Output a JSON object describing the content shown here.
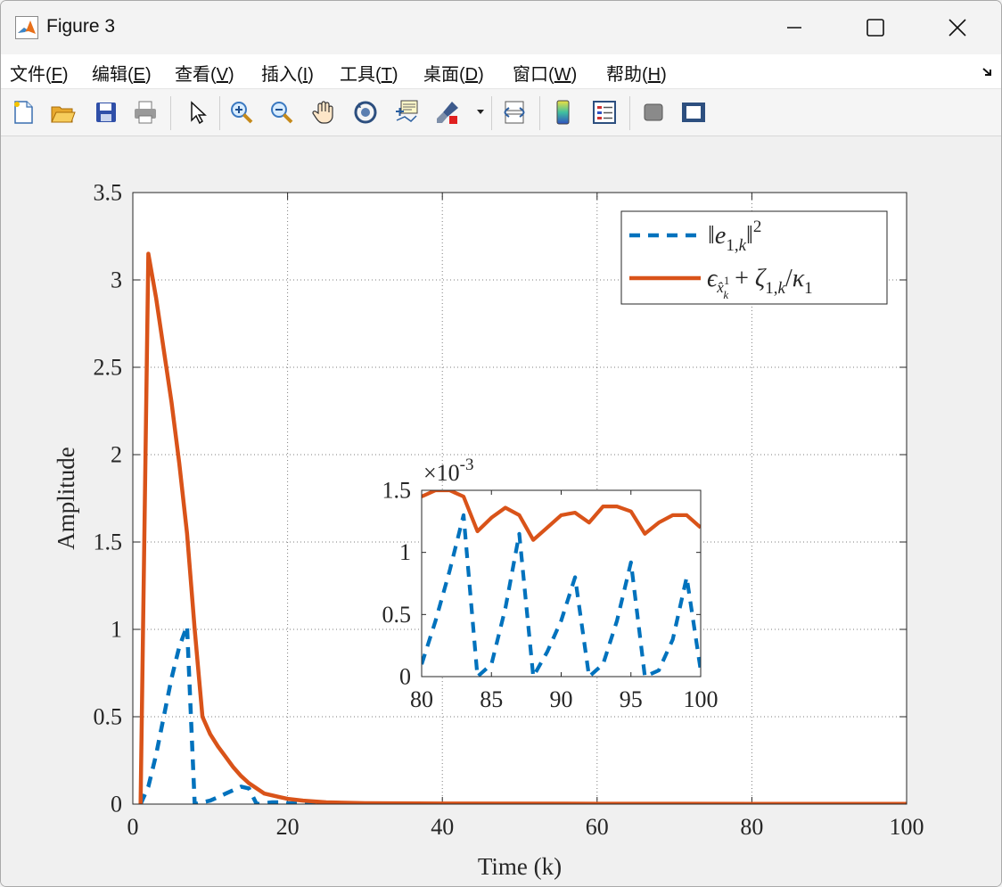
{
  "window": {
    "title": "Figure 3"
  },
  "menu": [
    {
      "label": "文件(",
      "mn": "F",
      "end": ")"
    },
    {
      "label": "编辑(",
      "mn": "E",
      "end": ")"
    },
    {
      "label": "查看(",
      "mn": "V",
      "end": ")"
    },
    {
      "label": "插入(",
      "mn": "I",
      "end": ")"
    },
    {
      "label": "工具(",
      "mn": "T",
      "end": ")"
    },
    {
      "label": "桌面(",
      "mn": "D",
      "end": ")"
    },
    {
      "label": "窗口(",
      "mn": "W",
      "end": ")"
    },
    {
      "label": "帮助(",
      "mn": "H",
      "end": ")"
    }
  ],
  "toolbar_icons": [
    "new-figure-icon",
    "open-file-icon",
    "save-icon",
    "print-icon",
    "pointer-icon",
    "zoom-in-icon",
    "zoom-out-icon",
    "pan-hand-icon",
    "rotate-3d-icon",
    "data-cursor-icon",
    "brush-icon",
    "link-plot-icon",
    "colorbar-icon",
    "legend-icon",
    "hide-plot-tools-icon",
    "show-plot-tools-icon"
  ],
  "colors": {
    "series1": "#0072BD",
    "series2": "#D95319"
  },
  "chart_data": [
    {
      "type": "line",
      "xlabel": "Time (k)",
      "ylabel": "Amplitude",
      "xlim": [
        0,
        100
      ],
      "ylim": [
        0,
        3.5
      ],
      "xticks": [
        "0",
        "20",
        "40",
        "60",
        "80",
        "100"
      ],
      "yticks": [
        "0",
        "0.5",
        "1",
        "1.5",
        "2",
        "2.5",
        "3",
        "3.5"
      ],
      "grid": true,
      "legend_position": "top-right",
      "series": [
        {
          "name": "‖e1,k‖²",
          "style": "dashed",
          "x": [
            1,
            2,
            3,
            4,
            5,
            6,
            7,
            8,
            9,
            10,
            11,
            12,
            13,
            14,
            15,
            16,
            17,
            18,
            19,
            20,
            25,
            30,
            40,
            60,
            80,
            100
          ],
          "y": [
            0,
            0.1,
            0.28,
            0.5,
            0.72,
            0.9,
            1.02,
            0.0,
            0.01,
            0.02,
            0.04,
            0.06,
            0.08,
            0.1,
            0.09,
            0.0,
            0.005,
            0.01,
            0.01,
            0.005,
            0.002,
            0.001,
            0.0005,
            0.0004,
            0.0003,
            0.0003
          ]
        },
        {
          "name": "ε_{x̂¹k} + ζ1,k/κ1",
          "style": "solid",
          "x": [
            1,
            2,
            3,
            4,
            5,
            6,
            7,
            8,
            9,
            10,
            11,
            12,
            13,
            14,
            15,
            16,
            17,
            18,
            19,
            20,
            22,
            25,
            30,
            40,
            60,
            80,
            100
          ],
          "y": [
            0,
            3.15,
            2.9,
            2.6,
            2.3,
            1.95,
            1.55,
            1.0,
            0.5,
            0.4,
            0.33,
            0.27,
            0.21,
            0.16,
            0.12,
            0.09,
            0.06,
            0.05,
            0.04,
            0.03,
            0.02,
            0.01,
            0.005,
            0.003,
            0.002,
            0.0015,
            0.0015
          ]
        }
      ]
    },
    {
      "type": "line",
      "title": "",
      "xlim": [
        80,
        100
      ],
      "ylim": [
        0,
        1.5
      ],
      "scale_label": "×10-3",
      "xticks": [
        "80",
        "85",
        "90",
        "95",
        "100"
      ],
      "yticks": [
        "0",
        "0.5",
        "1",
        "1.5"
      ],
      "grid": false,
      "series": [
        {
          "name": "‖e1,k‖²",
          "style": "dashed",
          "x": [
            80,
            81,
            82,
            83,
            84,
            85,
            86,
            87,
            88,
            89,
            90,
            91,
            92,
            93,
            94,
            95,
            96,
            97,
            98,
            99,
            100
          ],
          "y": [
            0.1,
            0.45,
            0.85,
            1.3,
            0.0,
            0.1,
            0.55,
            1.15,
            0.0,
            0.2,
            0.45,
            0.8,
            0.0,
            0.1,
            0.45,
            0.92,
            0.0,
            0.05,
            0.3,
            0.8,
            0.05
          ]
        },
        {
          "name": "ε_{x̂¹k} + ζ1,k/κ1",
          "style": "solid",
          "x": [
            80,
            81,
            82,
            83,
            84,
            85,
            86,
            87,
            88,
            89,
            90,
            91,
            92,
            93,
            94,
            95,
            96,
            97,
            98,
            99,
            100
          ],
          "y": [
            1.45,
            1.5,
            1.5,
            1.45,
            1.17,
            1.28,
            1.36,
            1.3,
            1.1,
            1.2,
            1.3,
            1.32,
            1.24,
            1.37,
            1.37,
            1.33,
            1.15,
            1.24,
            1.3,
            1.3,
            1.2
          ]
        }
      ]
    }
  ]
}
